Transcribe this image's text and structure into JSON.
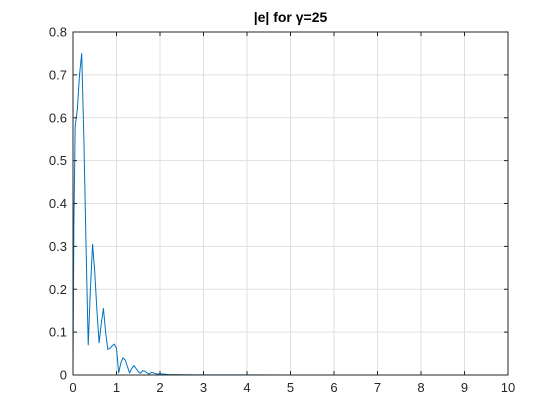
{
  "chart_data": {
    "type": "line",
    "title": "|e| for γ=25",
    "xlabel": "",
    "ylabel": "",
    "xlim": [
      0,
      10
    ],
    "ylim": [
      0,
      0.8
    ],
    "x_ticks": [
      "0",
      "1",
      "2",
      "3",
      "4",
      "5",
      "6",
      "7",
      "8",
      "9",
      "10"
    ],
    "y_ticks": [
      "0",
      "0.1",
      "0.2",
      "0.3",
      "0.4",
      "0.5",
      "0.6",
      "0.7",
      "0.8"
    ],
    "grid": true,
    "line_color": "#0072BD",
    "series": [
      {
        "x": [
          0,
          0.02,
          0.05,
          0.1,
          0.15,
          0.2,
          0.25,
          0.3,
          0.35,
          0.4,
          0.45,
          0.5,
          0.55,
          0.6,
          0.65,
          0.7,
          0.75,
          0.8,
          0.85,
          0.9,
          0.95,
          1.0,
          1.05,
          1.1,
          1.15,
          1.2,
          1.25,
          1.3,
          1.35,
          1.4,
          1.45,
          1.5,
          1.55,
          1.6,
          1.65,
          1.7,
          1.75,
          1.8,
          1.85,
          1.9,
          1.95,
          2.0,
          2.1,
          2.2,
          2.4,
          2.6,
          3.0,
          4.0,
          5.0,
          6.0,
          7.0,
          8.0,
          9.0,
          10.0
        ],
        "values": [
          0,
          0.35,
          0.58,
          0.62,
          0.7,
          0.75,
          0.55,
          0.3,
          0.07,
          0.2,
          0.305,
          0.24,
          0.15,
          0.075,
          0.12,
          0.155,
          0.1,
          0.06,
          0.062,
          0.068,
          0.072,
          0.062,
          0.005,
          0.028,
          0.04,
          0.035,
          0.02,
          0.005,
          0.015,
          0.022,
          0.015,
          0.008,
          0.004,
          0.01,
          0.009,
          0.005,
          0.002,
          0.006,
          0.005,
          0.003,
          0.002,
          0.003,
          0.002,
          0.001,
          0.001,
          0.0005,
          0.0003,
          0.0002,
          0.0001,
          0.0001,
          0.0001,
          0.0001,
          0.0001,
          0.0001
        ]
      }
    ]
  }
}
